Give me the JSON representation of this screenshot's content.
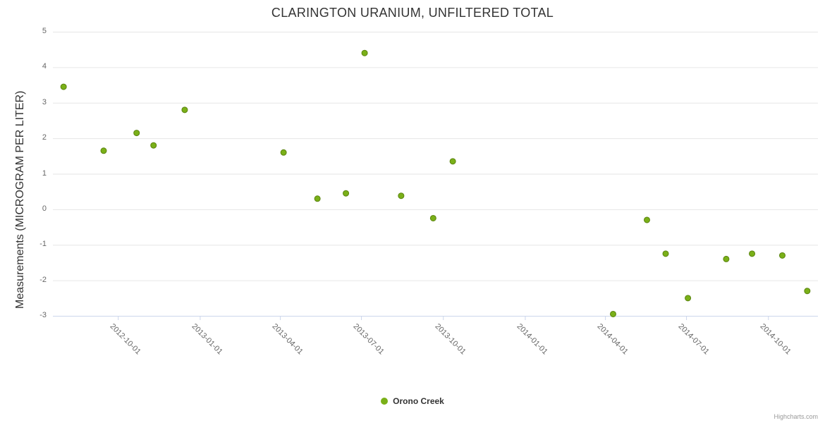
{
  "chart": {
    "credits": "Highcharts.com"
  },
  "chart_data": {
    "type": "scatter",
    "title": "CLARINGTON URANIUM, UNFILTERED TOTAL",
    "xlabel": "",
    "ylabel": "Measurements (MICROGRAM PER LITER)",
    "ylim": [
      -3,
      5
    ],
    "yticks": [
      -3,
      -2,
      -1,
      0,
      1,
      2,
      3,
      4,
      5
    ],
    "xlim": [
      "2012-07-20",
      "2014-11-26"
    ],
    "xticks": [
      "2012-10-01",
      "2013-01-01",
      "2013-04-01",
      "2013-07-01",
      "2013-10-01",
      "2014-01-01",
      "2014-04-01",
      "2014-07-01",
      "2014-10-01"
    ],
    "grid": true,
    "legend_position": "bottom-center",
    "colors": {
      "grid": "#e6e6e6",
      "axis_line": "#ccd6eb",
      "tick_label": "#666666",
      "title": "#333333"
    },
    "series": [
      {
        "name": "Orono Creek",
        "color": "#7ab018",
        "marker_stroke": "#5a830f",
        "points": [
          [
            "2012-08-01",
            3.45
          ],
          [
            "2012-09-15",
            1.65
          ],
          [
            "2012-10-22",
            2.15
          ],
          [
            "2012-11-10",
            1.8
          ],
          [
            "2012-12-15",
            2.8
          ],
          [
            "2013-04-05",
            1.6
          ],
          [
            "2013-05-13",
            0.3
          ],
          [
            "2013-06-14",
            0.45
          ],
          [
            "2013-07-05",
            4.4
          ],
          [
            "2013-08-15",
            0.38
          ],
          [
            "2013-09-20",
            -0.25
          ],
          [
            "2013-10-12",
            1.35
          ],
          [
            "2014-04-10",
            -2.95
          ],
          [
            "2014-05-18",
            -0.3
          ],
          [
            "2014-06-08",
            -1.25
          ],
          [
            "2014-07-03",
            -2.5
          ],
          [
            "2014-08-15",
            -1.4
          ],
          [
            "2014-09-13",
            -1.25
          ],
          [
            "2014-10-17",
            -1.3
          ],
          [
            "2014-11-14",
            -2.3
          ]
        ]
      }
    ]
  }
}
